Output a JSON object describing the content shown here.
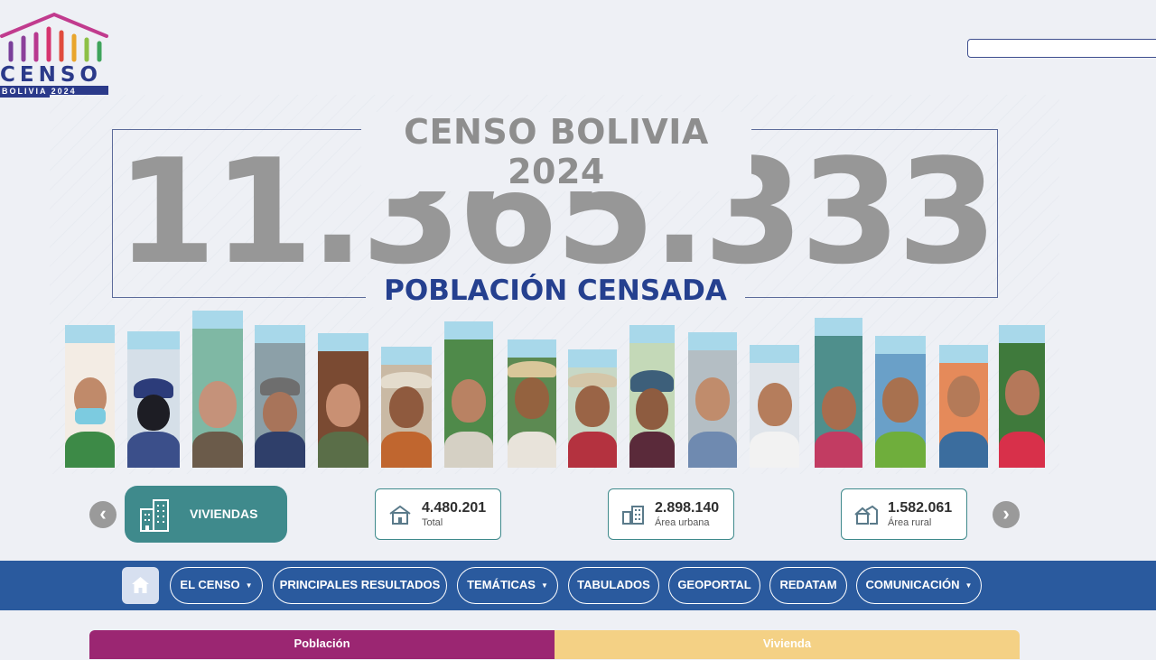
{
  "header": {
    "logo_text": "CENSO",
    "logo_subtitle": "BOLIVIA 2024",
    "search_placeholder": ""
  },
  "hero": {
    "title": "CENSO BOLIVIA 2024",
    "population": "11.365.333",
    "population_label": "POBLACIÓN CENSADA"
  },
  "carousel": {
    "prev_arrow": "‹",
    "next_arrow": "›",
    "category_label": "VIVIENDAS",
    "stats": [
      {
        "value": "4.480.201",
        "label": "Total"
      },
      {
        "value": "2.898.140",
        "label": "Área urbana"
      },
      {
        "value": "1.582.061",
        "label": "Área rural"
      }
    ]
  },
  "nav": {
    "items": [
      {
        "label": "EL CENSO",
        "caret": "▼"
      },
      {
        "label": "PRINCIPALES RESULTADOS"
      },
      {
        "label": "TEMÁTICAS",
        "caret": "▼"
      },
      {
        "label": "TABULADOS"
      },
      {
        "label": "GEOPORTAL"
      },
      {
        "label": "REDATAM"
      },
      {
        "label": "COMUNICACIÓN",
        "caret": "▼"
      }
    ]
  },
  "tabs": [
    {
      "label": "Población",
      "color": "#9b2672"
    },
    {
      "label": "Vivienda",
      "color": "#f4d185"
    }
  ],
  "colors": {
    "accent_teal": "#3f8a8c",
    "nav_blue": "#2a5a9e",
    "title_blue": "#25408f"
  }
}
